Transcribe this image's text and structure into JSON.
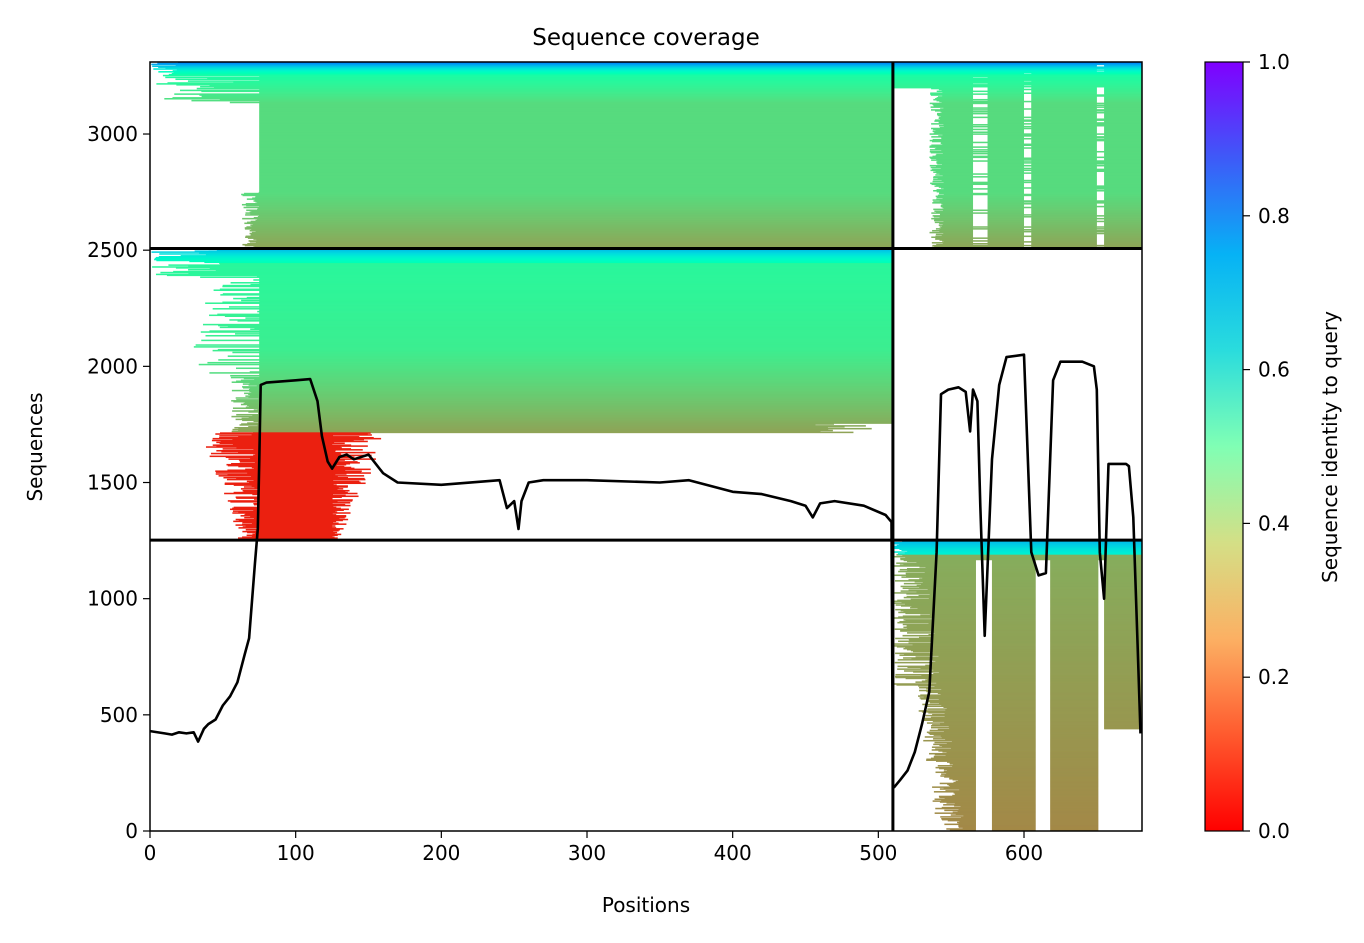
{
  "chart_data": {
    "type": "heatmap",
    "title": "Sequence coverage",
    "xlabel": "Positions",
    "ylabel": "Sequences",
    "xlim": [
      0,
      681
    ],
    "ylim": [
      0,
      3310
    ],
    "x_ticks": [
      0,
      100,
      200,
      300,
      400,
      500,
      600
    ],
    "y_ticks": [
      0,
      500,
      1000,
      1500,
      2000,
      2500,
      3000
    ],
    "grid": false,
    "colorbar": {
      "label": "Sequence identity to query",
      "colormap": "rainbow_r",
      "range": [
        0,
        1
      ],
      "ticks": [
        "0.0",
        "0.2",
        "0.4",
        "0.6",
        "0.8",
        "1.0"
      ]
    },
    "block_separators": {
      "x": [
        510
      ],
      "y": [
        1252,
        2507
      ]
    },
    "blocks": [
      {
        "name": "upper",
        "rows": [
          2507,
          3310
        ],
        "segments": [
          {
            "positions": [
              0,
              510
            ],
            "coverage_start_by_identity": [
              [
                0.8,
                0
              ],
              [
                0.45,
                75
              ],
              [
                0.3,
                60
              ]
            ],
            "mean_identity": 0.33
          },
          {
            "positions": [
              510,
              681
            ],
            "coverage_start_by_identity": [
              [
                0.8,
                510
              ],
              [
                0.35,
                535
              ]
            ],
            "mean_identity": 0.33,
            "gaps": [
              [
                565,
                575
              ],
              [
                600,
                605
              ],
              [
                650,
                655
              ]
            ]
          }
        ]
      },
      {
        "name": "middle",
        "rows": [
          1252,
          2507
        ],
        "segments": [
          {
            "positions": [
              0,
              510
            ],
            "identity_range": [
              0.28,
              0.72
            ],
            "red_patch": {
              "positions": [
                75,
                125
              ],
              "rows": [
                1252,
                1715
              ],
              "identity": 0.04
            }
          }
        ]
      },
      {
        "name": "lower",
        "rows": [
          0,
          1252
        ],
        "segments": [
          {
            "positions": [
              510,
              681
            ],
            "identity_range": [
              0.15,
              0.75
            ],
            "mean_identity": 0.2,
            "gaps": [
              [
                567,
                578
              ],
              [
                608,
                618
              ],
              [
                651,
                655
              ]
            ]
          }
        ]
      }
    ],
    "series": [
      {
        "type": "line",
        "color": "#000000",
        "x": [
          0,
          10,
          15,
          20,
          25,
          30,
          33,
          37,
          40,
          45,
          50,
          55,
          60,
          65,
          68,
          72,
          74,
          75,
          76,
          80,
          90,
          100,
          110,
          115,
          118,
          122,
          125,
          130,
          135,
          140,
          150,
          160,
          170,
          200,
          240,
          245,
          250,
          253,
          255,
          260,
          270,
          300,
          350,
          370,
          400,
          420,
          440,
          450,
          455,
          460,
          470,
          490,
          505,
          509,
          510,
          511,
          515,
          520,
          525,
          530,
          535,
          540,
          543,
          548,
          555,
          560,
          563,
          565,
          568,
          570,
          573,
          578,
          583,
          588,
          600,
          605,
          610,
          615,
          620,
          625,
          630,
          635,
          640,
          648,
          650,
          652,
          655,
          658,
          670,
          672,
          675,
          678,
          680
        ],
        "y": [
          430,
          420,
          415,
          425,
          420,
          425,
          385,
          440,
          460,
          480,
          540,
          580,
          640,
          760,
          830,
          1150,
          1300,
          1600,
          1920,
          1930,
          1935,
          1940,
          1945,
          1850,
          1700,
          1590,
          1560,
          1610,
          1620,
          1600,
          1620,
          1540,
          1500,
          1490,
          1510,
          1390,
          1420,
          1300,
          1420,
          1500,
          1510,
          1510,
          1500,
          1510,
          1460,
          1450,
          1420,
          1400,
          1350,
          1410,
          1420,
          1400,
          1360,
          1330,
          185,
          190,
          220,
          260,
          340,
          460,
          600,
          1200,
          1880,
          1900,
          1910,
          1890,
          1720,
          1900,
          1850,
          1400,
          840,
          1600,
          1920,
          2040,
          2050,
          1200,
          1100,
          1110,
          1940,
          2020,
          2020,
          2020,
          2020,
          2000,
          1900,
          1200,
          1000,
          1580,
          1580,
          1570,
          1350,
          800,
          420
        ]
      }
    ]
  }
}
